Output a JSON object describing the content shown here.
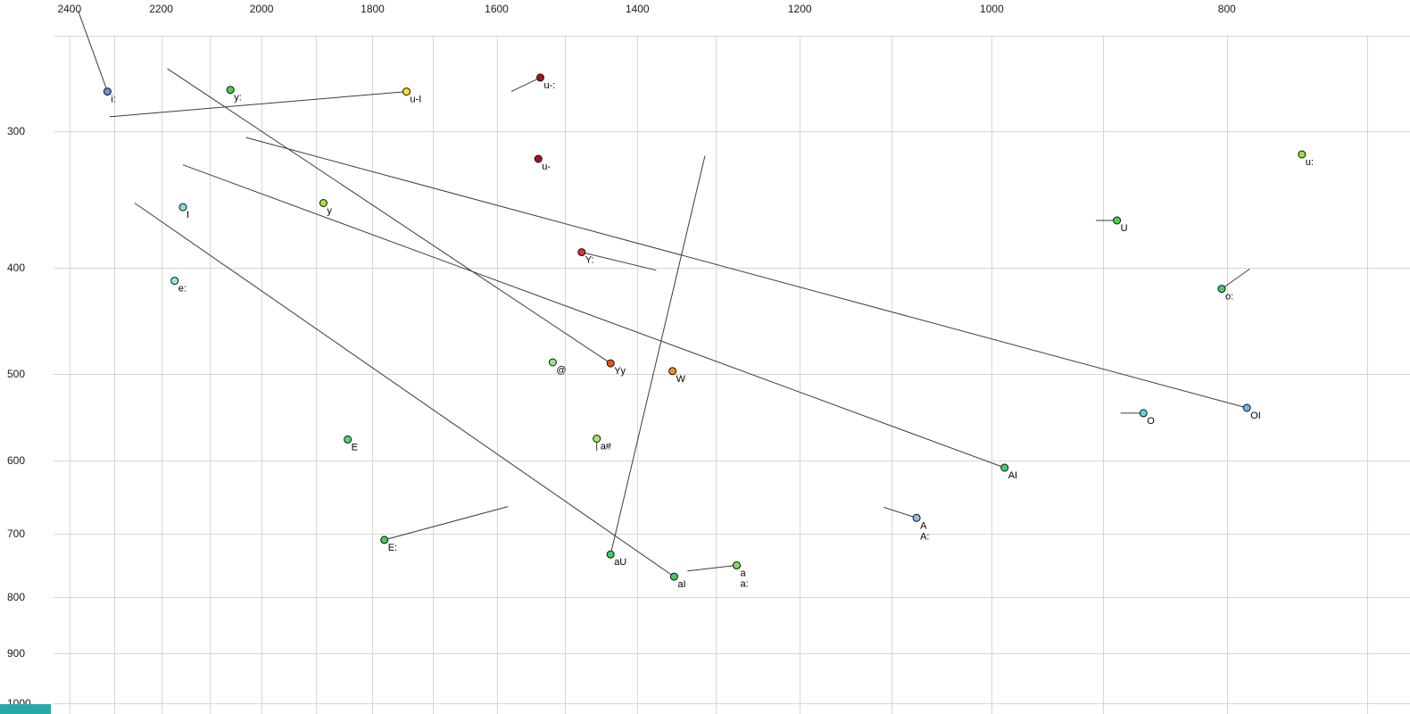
{
  "ui": {
    "corner_color": "#2aa8a8"
  },
  "chart_data": {
    "type": "scatter",
    "title": "",
    "xlabel": "",
    "ylabel": "",
    "x_axis": {
      "scale": "log",
      "direction": "right-to-left",
      "tick_labels": [
        2400,
        2200,
        2000,
        1800,
        1600,
        1400,
        1200,
        1000,
        800
      ],
      "grid_max": 2400,
      "grid_min": 700,
      "grid_step": 100
    },
    "y_axis": {
      "scale": "log",
      "direction": "top-to-bottom",
      "tick_labels": [
        300,
        400,
        500,
        600,
        700,
        800,
        900,
        1000
      ]
    },
    "style": {
      "grid_color": "#d6d6d6",
      "line_color": "#3c3c3c",
      "text_color": "#1a1a1a",
      "dot_stroke": "#101010",
      "dot_radius": 4,
      "tick_font_size": 12,
      "label_font_size": 11
    },
    "points": [
      {
        "label": "i:",
        "f2": 2315,
        "f1": 276,
        "color": "#6f8fd8",
        "tail": {
          "f2": 2380,
          "f1": 233
        }
      },
      {
        "label": "y:",
        "f2": 2060,
        "f1": 275,
        "color": "#44d44a"
      },
      {
        "label": "u-I",
        "f2": 1743,
        "f1": 276,
        "color": "#ffdd22",
        "tail": {
          "f2": 2310,
          "f1": 291
        }
      },
      {
        "label": "u-:",
        "f2": 1535,
        "f1": 268,
        "color": "#a31515",
        "tail": {
          "f2": 1578,
          "f1": 276
        }
      },
      {
        "label": "u-",
        "f2": 1538,
        "f1": 318,
        "color": "#a31515"
      },
      {
        "label": "u:",
        "f2": 745,
        "f1": 315,
        "color": "#9ae22e"
      },
      {
        "label": "I",
        "f2": 2155,
        "f1": 352,
        "color": "#7fe0e8"
      },
      {
        "label": "y",
        "f2": 1886,
        "f1": 349,
        "color": "#a8de4a"
      },
      {
        "label": "U",
        "f2": 888,
        "f1": 362,
        "color": "#4ad44a",
        "tail": {
          "f2": 906,
          "f1": 362
        }
      },
      {
        "label": "Y:",
        "f2": 1476,
        "f1": 387,
        "color": "#e03030",
        "tail": {
          "f2": 1375,
          "f1": 402
        }
      },
      {
        "label": "e:",
        "f2": 2172,
        "f1": 411,
        "color": "#8fe8ee"
      },
      {
        "label": "o:",
        "f2": 804,
        "f1": 418,
        "color": "#3cd46a",
        "tail": {
          "f2": 783,
          "f1": 401
        }
      },
      {
        "label": "@",
        "f2": 1517,
        "f1": 488,
        "color": "#8fe88f"
      },
      {
        "label": "Yy",
        "f2": 1436,
        "f1": 489,
        "color": "#f05010",
        "tail": {
          "f2": 2187,
          "f1": 263
        }
      },
      {
        "label": "W",
        "f2": 1354,
        "f1": 497,
        "color": "#ff8c1a"
      },
      {
        "label": "O",
        "f2": 866,
        "f1": 543,
        "color": "#5fd2e0",
        "tail": {
          "f2": 885,
          "f1": 543
        }
      },
      {
        "label": "OI",
        "f2": 785,
        "f1": 537,
        "color": "#6ab4ea",
        "tail": {
          "f2": 2030,
          "f1": 304
        }
      },
      {
        "label": "E",
        "f2": 1843,
        "f1": 574,
        "color": "#46dc7a"
      },
      {
        "label": "a#",
        "f2": 1455,
        "f1": 573,
        "color": "#9bea6a",
        "tail": {
          "f2": 1455,
          "f1": 588
        }
      },
      {
        "label": "AI",
        "f2": 988,
        "f1": 609,
        "color": "#3cd46a",
        "tail": {
          "f2": 2155,
          "f1": 322
        }
      },
      {
        "label": "A",
        "f2": 1074,
        "f1": 677,
        "color": "#8fbce8",
        "tail": {
          "f2": 1108,
          "f1": 662
        }
      },
      {
        "label": "A:",
        "f2": 1074,
        "f1": 677,
        "color": "#8fbce8",
        "dot": false,
        "ldy": 24
      },
      {
        "label": "E:",
        "f2": 1780,
        "f1": 709,
        "color": "#46cc5a",
        "tail": {
          "f2": 1583,
          "f1": 661
        }
      },
      {
        "label": "aU",
        "f2": 1436,
        "f1": 731,
        "color": "#46cc5a",
        "tail": {
          "f2": 1313,
          "f1": 316
        }
      },
      {
        "label": "aI",
        "f2": 1352,
        "f1": 766,
        "color": "#3ccc5a",
        "tail": {
          "f2": 2256,
          "f1": 349
        }
      },
      {
        "label": "a",
        "f2": 1274,
        "f1": 748,
        "color": "#7fdc5a",
        "tail": {
          "f2": 1335,
          "f1": 757
        }
      },
      {
        "label": "a:",
        "f2": 1274,
        "f1": 748,
        "color": "#7fdc5a",
        "dot": false,
        "ldy": 24
      }
    ]
  }
}
